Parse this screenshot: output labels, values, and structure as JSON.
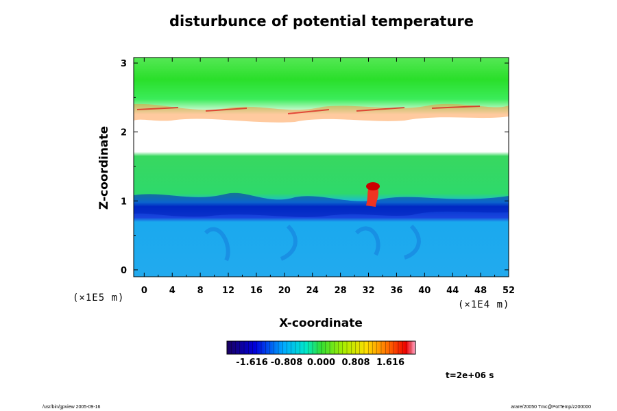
{
  "chart_data": {
    "type": "heatmap",
    "title": "disturbunce of potential temperature",
    "xlabel": "X-coordinate",
    "ylabel": "Z-coordinate",
    "x_unit": "(×1E4 m)",
    "y_unit": "(×1E5 m)",
    "xlim": [
      -1.5,
      52
    ],
    "ylim": [
      -0.1,
      3.08
    ],
    "x_ticks": [
      "0",
      "4",
      "8",
      "12",
      "16",
      "20",
      "24",
      "28",
      "32",
      "36",
      "40",
      "44",
      "48",
      "52"
    ],
    "y_ticks": [
      "0",
      "1",
      "2",
      "3"
    ],
    "colorbar": {
      "tick_labels": [
        "-1.616",
        "-0.808",
        "0.000",
        "0.808",
        "1.616"
      ],
      "range": [
        -2.2,
        2.2
      ]
    },
    "time_label": "t=2e+06 s",
    "field_bands": [
      {
        "z": [
          -0.1,
          0.88
        ],
        "value": -0.55
      },
      {
        "z": [
          0.88,
          1.0
        ],
        "value": -1.25
      },
      {
        "z": [
          1.0,
          1.72
        ],
        "value": 0.05
      },
      {
        "z": [
          1.72,
          2.25
        ],
        "value": null
      },
      {
        "z": [
          2.25,
          2.9
        ],
        "value": 0.15
      },
      {
        "z": [
          2.9,
          3.08
        ],
        "value": 0.3
      }
    ],
    "features": [
      {
        "label": "warm plume",
        "x": 33.0,
        "z": 1.18,
        "value": 1.8
      }
    ]
  },
  "footer": {
    "left": "/usr/bin/gpview 2005-09-16",
    "right": "arare/20050 Tmc@PotTemp/z200000"
  },
  "colors": {
    "background": "#ffffff",
    "frame": "#000000"
  }
}
